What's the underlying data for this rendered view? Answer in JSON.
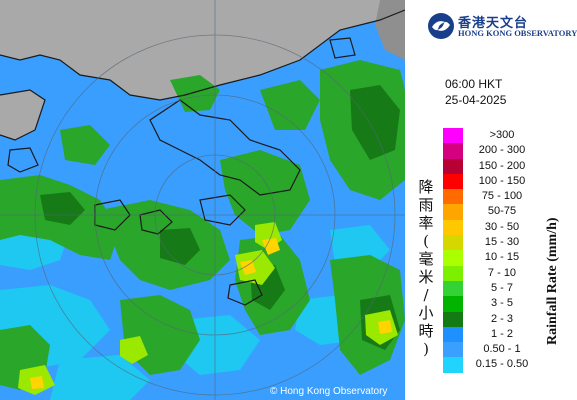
{
  "header": {
    "org_name_cn": "香港天文台",
    "org_name_en": "HONG KONG OBSERVATORY"
  },
  "timestamp": {
    "time": "06:00 HKT",
    "date": "25-04-2025"
  },
  "legend": {
    "title_cn": "降雨率(毫米/小時)",
    "title_en": "Rainfall Rate (mm/h)",
    "bands": [
      {
        "label": ">300",
        "color": "#ff00ff"
      },
      {
        "label": "200 - 300",
        "color": "#d4007f"
      },
      {
        "label": "150 - 200",
        "color": "#b70033"
      },
      {
        "label": "100 - 150",
        "color": "#ff0000"
      },
      {
        "label": "75 - 100",
        "color": "#ff6b00"
      },
      {
        "label": "50-75",
        "color": "#ffa500"
      },
      {
        "label": "30 - 50",
        "color": "#ffc800"
      },
      {
        "label": "15 - 30",
        "color": "#d7d700"
      },
      {
        "label": "10 - 15",
        "color": "#aaff00"
      },
      {
        "label": "7 - 10",
        "color": "#7df000"
      },
      {
        "label": "5 - 7",
        "color": "#35d235"
      },
      {
        "label": "3 - 5",
        "color": "#00b400"
      },
      {
        "label": "2 - 3",
        "color": "#147a14"
      },
      {
        "label": "1 - 2",
        "color": "#1e90ff"
      },
      {
        "label": "0.50 - 1",
        "color": "#3aa0ff"
      },
      {
        "label": "0.15 - 0.50",
        "color": "#21d4fd"
      }
    ]
  },
  "map": {
    "copyright": "© Hong Kong Observatory",
    "colors": {
      "land": "#a9a9a9",
      "light_rain": "#3a9eff",
      "very_light": "#1ec8f0",
      "green": "#2aa62a",
      "dark_green": "#167a16",
      "yellow": "#ffd400",
      "lime": "#9be800",
      "coast": "#1a1a1a",
      "rings": "#556677"
    }
  }
}
